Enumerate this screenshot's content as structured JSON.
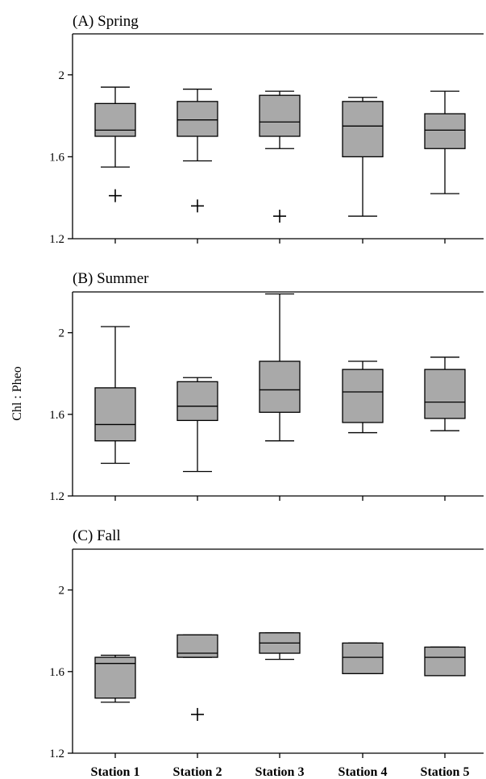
{
  "chart_data": {
    "type": "boxplot",
    "ylabel": "Chl : Pheo",
    "categories": [
      "Station 1",
      "Station 2",
      "Station 3",
      "Station 4",
      "Station 5"
    ],
    "ylim": [
      1.2,
      2.2
    ],
    "yticks": [
      1.2,
      1.6,
      2.0
    ],
    "ytick_labels": [
      "1.2",
      "1.6",
      "2"
    ],
    "box_color": "#a9a9a9",
    "panels": [
      {
        "title": "(A) Spring",
        "boxes": [
          {
            "whisker_low": 1.55,
            "q1": 1.7,
            "median": 1.73,
            "q3": 1.86,
            "whisker_high": 1.94,
            "outliers": [
              1.41
            ]
          },
          {
            "whisker_low": 1.58,
            "q1": 1.7,
            "median": 1.78,
            "q3": 1.87,
            "whisker_high": 1.93,
            "outliers": [
              1.36
            ]
          },
          {
            "whisker_low": 1.64,
            "q1": 1.7,
            "median": 1.77,
            "q3": 1.9,
            "whisker_high": 1.92,
            "outliers": [
              1.31
            ]
          },
          {
            "whisker_low": 1.31,
            "q1": 1.6,
            "median": 1.75,
            "q3": 1.87,
            "whisker_high": 1.89,
            "outliers": []
          },
          {
            "whisker_low": 1.42,
            "q1": 1.64,
            "median": 1.73,
            "q3": 1.81,
            "whisker_high": 1.92,
            "outliers": []
          }
        ]
      },
      {
        "title": "(B) Summer",
        "boxes": [
          {
            "whisker_low": 1.36,
            "q1": 1.47,
            "median": 1.55,
            "q3": 1.73,
            "whisker_high": 2.03,
            "outliers": []
          },
          {
            "whisker_low": 1.32,
            "q1": 1.57,
            "median": 1.64,
            "q3": 1.76,
            "whisker_high": 1.78,
            "outliers": []
          },
          {
            "whisker_low": 1.47,
            "q1": 1.61,
            "median": 1.72,
            "q3": 1.86,
            "whisker_high": 2.19,
            "outliers": []
          },
          {
            "whisker_low": 1.51,
            "q1": 1.56,
            "median": 1.71,
            "q3": 1.82,
            "whisker_high": 1.86,
            "outliers": []
          },
          {
            "whisker_low": 1.52,
            "q1": 1.58,
            "median": 1.66,
            "q3": 1.82,
            "whisker_high": 1.88,
            "outliers": []
          }
        ]
      },
      {
        "title": "(C) Fall",
        "boxes": [
          {
            "whisker_low": 1.45,
            "q1": 1.47,
            "median": 1.64,
            "q3": 1.67,
            "whisker_high": 1.68,
            "outliers": []
          },
          {
            "whisker_low": 1.67,
            "q1": 1.67,
            "median": 1.69,
            "q3": 1.78,
            "whisker_high": 1.78,
            "outliers": [
              1.39
            ]
          },
          {
            "whisker_low": 1.66,
            "q1": 1.69,
            "median": 1.74,
            "q3": 1.79,
            "whisker_high": 1.79,
            "outliers": []
          },
          {
            "whisker_low": 1.59,
            "q1": 1.59,
            "median": 1.67,
            "q3": 1.74,
            "whisker_high": 1.74,
            "outliers": []
          },
          {
            "whisker_low": 1.58,
            "q1": 1.58,
            "median": 1.67,
            "q3": 1.72,
            "whisker_high": 1.72,
            "outliers": []
          }
        ]
      }
    ]
  }
}
